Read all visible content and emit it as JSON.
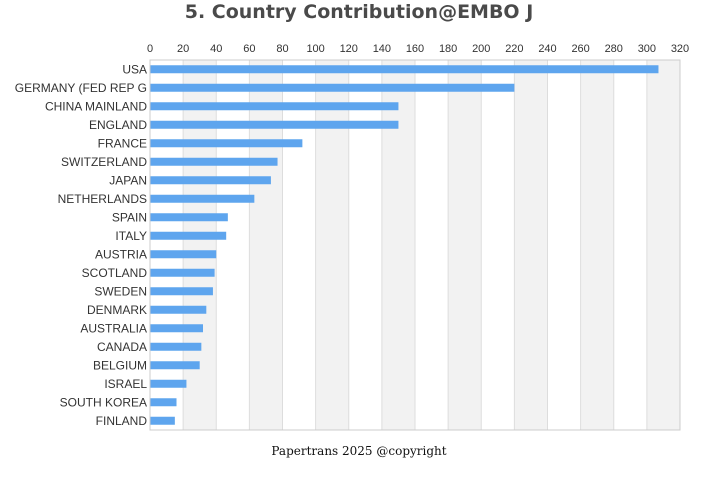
{
  "chart_data": {
    "type": "bar",
    "orientation": "horizontal",
    "title": "5. Country Contribution@EMBO J",
    "xlabel": "",
    "ylabel": "",
    "xlim": [
      0,
      320
    ],
    "x_ticks": [
      0,
      20,
      40,
      60,
      80,
      100,
      120,
      140,
      160,
      180,
      200,
      220,
      240,
      260,
      280,
      300,
      320
    ],
    "x_axis_position": "top",
    "grid": "alternating vertical bands",
    "legend": "none",
    "categories": [
      "USA",
      "GERMANY (FED REP G",
      "CHINA MAINLAND",
      "ENGLAND",
      "FRANCE",
      "SWITZERLAND",
      "JAPAN",
      "NETHERLANDS",
      "SPAIN",
      "ITALY",
      "AUSTRIA",
      "SCOTLAND",
      "SWEDEN",
      "DENMARK",
      "AUSTRALIA",
      "CANADA",
      "BELGIUM",
      "ISRAEL",
      "SOUTH KOREA",
      "FINLAND"
    ],
    "values": [
      307,
      220,
      150,
      150,
      92,
      77,
      73,
      63,
      47,
      46,
      40,
      39,
      38,
      34,
      32,
      31,
      30,
      22,
      16,
      15
    ],
    "colors": {
      "bar": "#5ea5ee",
      "band": "#f2f2f2",
      "gridline": "#dddddd",
      "text": "#333333",
      "title": "#4a4a4a"
    }
  },
  "footer": "Papertrans 2025 @copyright"
}
